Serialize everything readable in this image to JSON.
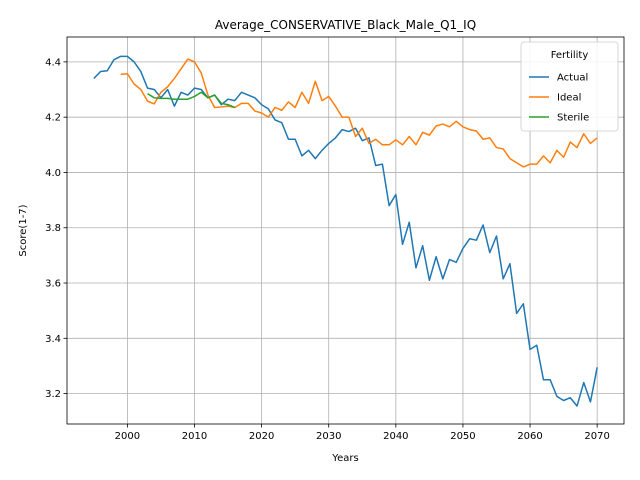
{
  "chart_data": {
    "type": "line",
    "title": "Average_CONSERVATIVE_Black_Male_Q1_IQ",
    "xlabel": "Years",
    "ylabel": "Score(1-7)",
    "xlim": [
      1991,
      2074
    ],
    "ylim": [
      3.09,
      4.49
    ],
    "xticks": [
      2000,
      2010,
      2020,
      2030,
      2040,
      2050,
      2060,
      2070
    ],
    "yticks": [
      3.2,
      3.4,
      3.6,
      3.8,
      4.0,
      4.2,
      4.4
    ],
    "ytick_labels": [
      "3.2",
      "3.4",
      "3.6",
      "3.8",
      "4.0",
      "4.2",
      "4.4"
    ],
    "grid": true,
    "legend": {
      "title": "Fertility",
      "position": "top-right"
    },
    "series": [
      {
        "name": "Actual",
        "color": "#1f77b4",
        "x": [
          1995,
          1996,
          1997,
          1998,
          1999,
          2000,
          2001,
          2002,
          2003,
          2004,
          2005,
          2006,
          2007,
          2008,
          2009,
          2010,
          2011,
          2012,
          2013,
          2014,
          2015,
          2016,
          2017,
          2018,
          2019,
          2020,
          2021,
          2022,
          2023,
          2024,
          2025,
          2026,
          2027,
          2028,
          2029,
          2030,
          2031,
          2032,
          2033,
          2034,
          2035,
          2036,
          2037,
          2038,
          2039,
          2040,
          2041,
          2042,
          2043,
          2044,
          2045,
          2046,
          2047,
          2048,
          2049,
          2050,
          2051,
          2052,
          2053,
          2054,
          2055,
          2056,
          2057,
          2058,
          2059,
          2060,
          2061,
          2062,
          2063,
          2064,
          2065,
          2066,
          2067,
          2068,
          2069,
          2070
        ],
        "values": [
          4.34,
          4.365,
          4.368,
          4.408,
          4.42,
          4.42,
          4.4,
          4.365,
          4.305,
          4.3,
          4.27,
          4.3,
          4.24,
          4.29,
          4.28,
          4.305,
          4.3,
          4.27,
          4.28,
          4.245,
          4.265,
          4.26,
          4.29,
          4.28,
          4.27,
          4.245,
          4.23,
          4.19,
          4.18,
          4.12,
          4.12,
          4.06,
          4.08,
          4.05,
          4.08,
          4.105,
          4.125,
          4.155,
          4.148,
          4.16,
          4.115,
          4.125,
          4.025,
          4.03,
          3.88,
          3.92,
          3.74,
          3.82,
          3.655,
          3.735,
          3.61,
          3.695,
          3.615,
          3.685,
          3.675,
          3.725,
          3.76,
          3.755,
          3.81,
          3.71,
          3.77,
          3.615,
          3.67,
          3.49,
          3.525,
          3.36,
          3.375,
          3.25,
          3.25,
          3.19,
          3.175,
          3.185,
          3.155,
          3.24,
          3.17,
          3.295
        ]
      },
      {
        "name": "Ideal",
        "color": "#ff7f0e",
        "x": [
          1999,
          2000,
          2001,
          2002,
          2003,
          2004,
          2005,
          2006,
          2007,
          2008,
          2009,
          2010,
          2011,
          2012,
          2013,
          2014,
          2015,
          2016,
          2017,
          2018,
          2019,
          2020,
          2021,
          2022,
          2023,
          2024,
          2025,
          2026,
          2027,
          2028,
          2029,
          2030,
          2031,
          2032,
          2033,
          2034,
          2035,
          2036,
          2037,
          2038,
          2039,
          2040,
          2041,
          2042,
          2043,
          2044,
          2045,
          2046,
          2047,
          2048,
          2049,
          2050,
          2051,
          2052,
          2053,
          2054,
          2055,
          2056,
          2057,
          2058,
          2059,
          2060,
          2061,
          2062,
          2063,
          2064,
          2065,
          2066,
          2067,
          2068,
          2069,
          2070
        ],
        "values": [
          4.355,
          4.357,
          4.32,
          4.3,
          4.258,
          4.248,
          4.29,
          4.31,
          4.34,
          4.375,
          4.41,
          4.4,
          4.36,
          4.28,
          4.235,
          4.237,
          4.24,
          4.235,
          4.25,
          4.25,
          4.222,
          4.215,
          4.2,
          4.235,
          4.225,
          4.255,
          4.235,
          4.29,
          4.25,
          4.33,
          4.26,
          4.275,
          4.24,
          4.2,
          4.2,
          4.13,
          4.16,
          4.105,
          4.12,
          4.1,
          4.1,
          4.118,
          4.1,
          4.13,
          4.1,
          4.145,
          4.135,
          4.168,
          4.175,
          4.165,
          4.185,
          4.165,
          4.155,
          4.15,
          4.12,
          4.125,
          4.09,
          4.085,
          4.05,
          4.035,
          4.02,
          4.03,
          4.03,
          4.06,
          4.035,
          4.08,
          4.055,
          4.11,
          4.09,
          4.14,
          4.105,
          4.125
        ]
      },
      {
        "name": "Sterile",
        "color": "#2ca02c",
        "x": [
          2003,
          2004,
          2005,
          2006,
          2007,
          2008,
          2009,
          2010,
          2011,
          2012,
          2013,
          2014,
          2015,
          2016
        ],
        "values": [
          4.285,
          4.27,
          4.268,
          4.268,
          4.265,
          4.265,
          4.265,
          4.275,
          4.29,
          4.27,
          4.28,
          4.25,
          4.245,
          4.235
        ]
      }
    ]
  }
}
